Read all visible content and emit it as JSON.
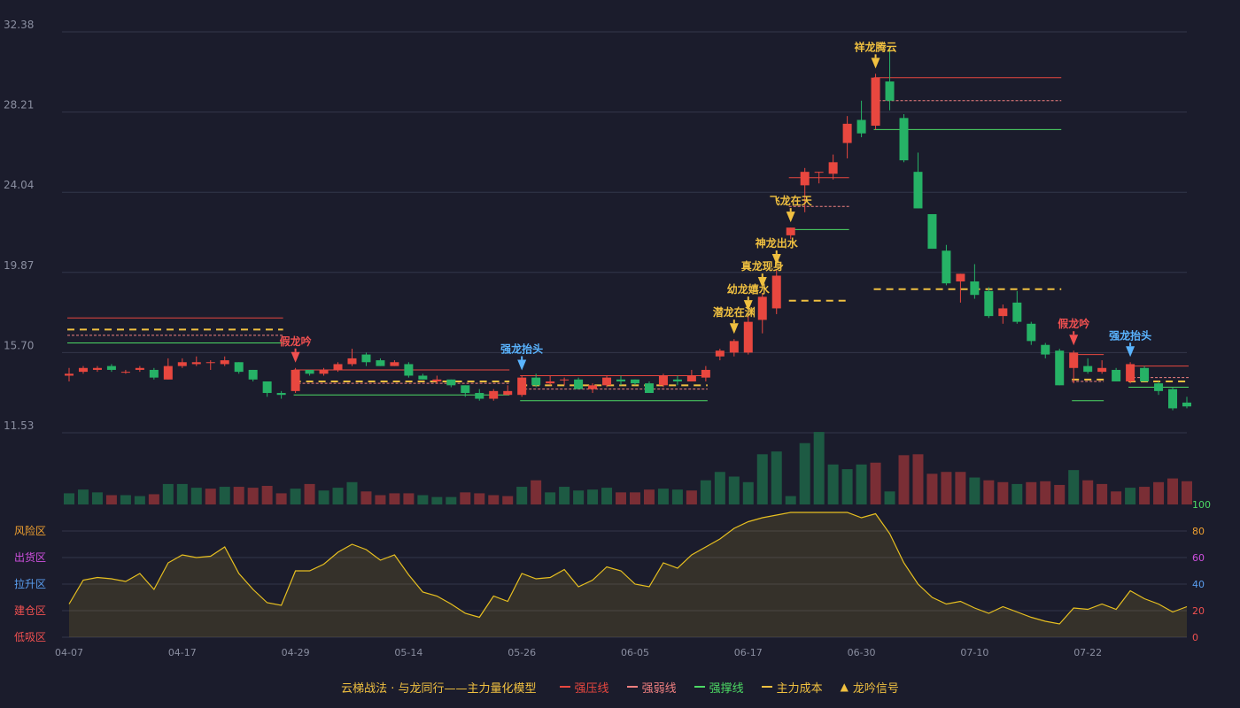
{
  "colors": {
    "background": "#1b1c2c",
    "up": "#e8473f",
    "down": "#26b266",
    "strong_pressure": "#e8473f",
    "strong_weak": "#f08080",
    "strong_support": "#4cd964",
    "main_cost": "#f0c040",
    "signal_gold": "#f0c040",
    "signal_red": "#f05050",
    "signal_blue": "#5ab4ff",
    "oscillator": "#e8c020",
    "grid": "#33364a",
    "axis_text": "#8a8ea0"
  },
  "legend": {
    "caption": "云梯战法 · 与龙同行——主力量化模型",
    "items": [
      {
        "label": "强压线",
        "color": "#e8473f",
        "style": "solid"
      },
      {
        "label": "强弱线",
        "color": "#f08080",
        "style": "dashed"
      },
      {
        "label": "强撑线",
        "color": "#4cd964",
        "style": "solid"
      },
      {
        "label": "主力成本",
        "color": "#f0c040",
        "style": "dashed"
      },
      {
        "label": "龙吟信号",
        "color": "#f0c040",
        "style": "triangle"
      }
    ]
  },
  "chart_data": {
    "type": "candlestick",
    "price_ticks": [
      "32.38",
      "28.21",
      "24.04",
      "19.87",
      "15.70",
      "11.53"
    ],
    "ylim": [
      11.53,
      32.38
    ],
    "x_ticks": [
      {
        "label": "04-07",
        "index": 0
      },
      {
        "label": "04-17",
        "index": 8
      },
      {
        "label": "04-29",
        "index": 16
      },
      {
        "label": "05-14",
        "index": 24
      },
      {
        "label": "05-26",
        "index": 32
      },
      {
        "label": "06-05",
        "index": 40
      },
      {
        "label": "06-17",
        "index": 48
      },
      {
        "label": "06-30",
        "index": 56
      },
      {
        "label": "07-10",
        "index": 64
      },
      {
        "label": "07-22",
        "index": 72
      }
    ],
    "candles": [
      [
        14.5,
        14.6,
        14.2,
        14.9
      ],
      [
        14.7,
        14.9,
        14.6,
        15.0
      ],
      [
        14.8,
        14.9,
        14.7,
        15.0
      ],
      [
        15.0,
        14.8,
        14.7,
        15.1
      ],
      [
        14.7,
        14.7,
        14.6,
        14.8
      ],
      [
        14.8,
        14.9,
        14.7,
        15.0
      ],
      [
        14.8,
        14.4,
        14.3,
        14.9
      ],
      [
        14.3,
        15.0,
        14.3,
        15.4
      ],
      [
        15.0,
        15.2,
        14.9,
        15.4
      ],
      [
        15.1,
        15.2,
        15.0,
        15.5
      ],
      [
        15.2,
        15.2,
        14.8,
        15.3
      ],
      [
        15.1,
        15.3,
        15.0,
        15.5
      ],
      [
        15.2,
        14.7,
        14.6,
        15.2
      ],
      [
        14.8,
        14.3,
        14.2,
        14.8
      ],
      [
        14.2,
        13.6,
        13.4,
        14.2
      ],
      [
        13.6,
        13.5,
        13.3,
        13.7
      ],
      [
        13.7,
        14.8,
        13.6,
        14.9
      ],
      [
        14.8,
        14.6,
        14.5,
        14.8
      ],
      [
        14.6,
        14.8,
        14.5,
        14.9
      ],
      [
        14.8,
        15.1,
        14.7,
        15.2
      ],
      [
        15.1,
        15.4,
        15.0,
        15.9
      ],
      [
        15.6,
        15.2,
        15.0,
        15.7
      ],
      [
        15.3,
        15.0,
        15.0,
        15.4
      ],
      [
        15.0,
        15.2,
        15.0,
        15.3
      ],
      [
        15.1,
        14.5,
        14.4,
        15.2
      ],
      [
        14.5,
        14.3,
        14.3,
        14.6
      ],
      [
        14.2,
        14.3,
        14.1,
        14.5
      ],
      [
        14.3,
        14.0,
        13.9,
        14.3
      ],
      [
        14.0,
        13.6,
        13.4,
        14.0
      ],
      [
        13.6,
        13.3,
        13.2,
        13.8
      ],
      [
        13.3,
        13.7,
        13.2,
        13.8
      ],
      [
        13.5,
        13.7,
        13.5,
        14.0
      ],
      [
        13.5,
        14.4,
        13.4,
        14.5
      ],
      [
        14.4,
        14.0,
        13.9,
        14.6
      ],
      [
        14.1,
        14.2,
        14.0,
        14.5
      ],
      [
        14.3,
        14.3,
        14.0,
        14.4
      ],
      [
        14.3,
        13.8,
        13.8,
        14.4
      ],
      [
        13.8,
        14.0,
        13.6,
        14.1
      ],
      [
        14.0,
        14.4,
        13.9,
        14.5
      ],
      [
        14.3,
        14.2,
        14.0,
        14.5
      ],
      [
        14.3,
        14.1,
        14.0,
        14.3
      ],
      [
        14.1,
        13.6,
        13.6,
        14.2
      ],
      [
        14.0,
        14.5,
        13.9,
        14.6
      ],
      [
        14.3,
        14.2,
        14.0,
        14.5
      ],
      [
        14.2,
        14.5,
        14.2,
        14.8
      ],
      [
        14.4,
        14.8,
        14.2,
        15.0
      ],
      [
        15.5,
        15.8,
        15.3,
        15.9
      ],
      [
        15.7,
        16.3,
        15.5,
        16.4
      ],
      [
        15.7,
        17.3,
        15.6,
        17.6
      ],
      [
        17.4,
        18.6,
        16.7,
        18.8
      ],
      [
        18.0,
        19.7,
        17.7,
        20.0
      ],
      [
        21.8,
        22.2,
        21.6,
        22.2
      ],
      [
        24.4,
        25.1,
        23.0,
        25.3
      ],
      [
        25.1,
        25.1,
        24.5,
        25.1
      ],
      [
        25.0,
        25.6,
        24.7,
        26.0
      ],
      [
        26.6,
        27.6,
        25.8,
        28.0
      ],
      [
        27.8,
        27.1,
        26.9,
        28.8
      ],
      [
        27.5,
        30.0,
        27.3,
        30.2
      ],
      [
        29.8,
        28.8,
        28.3,
        31.6
      ],
      [
        27.9,
        25.7,
        25.6,
        28.1
      ],
      [
        25.1,
        23.2,
        23.2,
        26.1
      ],
      [
        22.9,
        21.1,
        21.1,
        22.9
      ],
      [
        21.0,
        19.3,
        19.2,
        21.3
      ],
      [
        19.4,
        19.8,
        18.3,
        19.8
      ],
      [
        19.4,
        18.7,
        18.5,
        20.3
      ],
      [
        18.9,
        17.6,
        17.5,
        19.1
      ],
      [
        17.6,
        18.0,
        17.2,
        18.2
      ],
      [
        18.3,
        17.3,
        17.2,
        18.9
      ],
      [
        17.2,
        16.3,
        16.1,
        17.3
      ],
      [
        16.1,
        15.6,
        15.4,
        16.2
      ],
      [
        15.8,
        14.0,
        14.0,
        15.9
      ],
      [
        14.9,
        15.7,
        14.1,
        15.8
      ],
      [
        15.0,
        14.7,
        14.6,
        15.4
      ],
      [
        14.7,
        14.9,
        14.6,
        15.3
      ],
      [
        14.8,
        14.2,
        14.2,
        14.9
      ],
      [
        14.2,
        15.1,
        14.1,
        15.2
      ],
      [
        14.9,
        14.2,
        14.2,
        15.0
      ],
      [
        14.1,
        13.7,
        13.5,
        14.2
      ],
      [
        13.8,
        12.8,
        12.7,
        13.9
      ],
      [
        13.1,
        12.9,
        12.8,
        13.4
      ]
    ],
    "volumes": [
      [
        1.2,
        "d"
      ],
      [
        1.6,
        "d"
      ],
      [
        1.3,
        "d"
      ],
      [
        1.0,
        "u"
      ],
      [
        1.0,
        "d"
      ],
      [
        0.9,
        "d"
      ],
      [
        1.1,
        "u"
      ],
      [
        2.2,
        "d"
      ],
      [
        2.2,
        "d"
      ],
      [
        1.8,
        "d"
      ],
      [
        1.7,
        "u"
      ],
      [
        1.9,
        "d"
      ],
      [
        1.9,
        "u"
      ],
      [
        1.8,
        "u"
      ],
      [
        2.0,
        "u"
      ],
      [
        1.2,
        "u"
      ],
      [
        1.7,
        "d"
      ],
      [
        2.2,
        "u"
      ],
      [
        1.5,
        "d"
      ],
      [
        1.8,
        "d"
      ],
      [
        2.4,
        "d"
      ],
      [
        1.4,
        "u"
      ],
      [
        1.0,
        "u"
      ],
      [
        1.2,
        "u"
      ],
      [
        1.2,
        "u"
      ],
      [
        1.0,
        "d"
      ],
      [
        0.8,
        "d"
      ],
      [
        0.8,
        "d"
      ],
      [
        1.3,
        "u"
      ],
      [
        1.2,
        "u"
      ],
      [
        1.0,
        "u"
      ],
      [
        0.9,
        "u"
      ],
      [
        1.9,
        "d"
      ],
      [
        2.6,
        "u"
      ],
      [
        1.3,
        "d"
      ],
      [
        1.9,
        "d"
      ],
      [
        1.5,
        "d"
      ],
      [
        1.6,
        "d"
      ],
      [
        1.8,
        "d"
      ],
      [
        1.3,
        "u"
      ],
      [
        1.3,
        "u"
      ],
      [
        1.6,
        "u"
      ],
      [
        1.7,
        "d"
      ],
      [
        1.6,
        "d"
      ],
      [
        1.5,
        "u"
      ],
      [
        2.6,
        "d"
      ],
      [
        3.5,
        "d"
      ],
      [
        3.0,
        "d"
      ],
      [
        2.4,
        "d"
      ],
      [
        5.4,
        "d"
      ],
      [
        5.7,
        "d"
      ],
      [
        0.9,
        "d"
      ],
      [
        6.6,
        "d"
      ],
      [
        7.8,
        "d"
      ],
      [
        4.3,
        "d"
      ],
      [
        3.8,
        "d"
      ],
      [
        4.3,
        "d"
      ],
      [
        4.5,
        "u"
      ],
      [
        1.4,
        "d"
      ],
      [
        5.3,
        "u"
      ],
      [
        5.4,
        "u"
      ],
      [
        3.3,
        "u"
      ],
      [
        3.5,
        "u"
      ],
      [
        3.5,
        "u"
      ],
      [
        2.9,
        "d"
      ],
      [
        2.6,
        "u"
      ],
      [
        2.4,
        "u"
      ],
      [
        2.2,
        "d"
      ],
      [
        2.4,
        "u"
      ],
      [
        2.5,
        "u"
      ],
      [
        2.1,
        "u"
      ],
      [
        3.7,
        "d"
      ],
      [
        2.6,
        "u"
      ],
      [
        2.2,
        "u"
      ],
      [
        1.4,
        "u"
      ],
      [
        1.8,
        "d"
      ],
      [
        1.9,
        "u"
      ],
      [
        2.4,
        "u"
      ],
      [
        2.8,
        "u"
      ],
      [
        2.5,
        "u"
      ]
    ],
    "oscillator": {
      "zones": [
        {
          "label": "风险区",
          "color": "#f0a030"
        },
        {
          "label": "出货区",
          "color": "#d050e0"
        },
        {
          "label": "拉升区",
          "color": "#5a9ef0"
        },
        {
          "label": "建仓区",
          "color": "#f05050"
        },
        {
          "label": "低吸区",
          "color": "#f05050"
        }
      ],
      "right_ticks": [
        {
          "label": "100",
          "value": 100,
          "color": "#4cd964"
        },
        {
          "label": "80",
          "value": 80,
          "color": "#f0a030"
        },
        {
          "label": "60",
          "value": 60,
          "color": "#d050e0"
        },
        {
          "label": "40",
          "value": 40,
          "color": "#5a9ef0"
        },
        {
          "label": "20",
          "value": 20,
          "color": "#f05050"
        },
        {
          "label": "0",
          "value": 0,
          "color": "#f05050"
        }
      ],
      "values": [
        25,
        43,
        45,
        44,
        42,
        48,
        36,
        56,
        62,
        60,
        61,
        68,
        48,
        36,
        26,
        24,
        50,
        50,
        55,
        64,
        70,
        66,
        58,
        62,
        47,
        34,
        31,
        25,
        18,
        15,
        31,
        27,
        48,
        44,
        45,
        51,
        38,
        43,
        53,
        50,
        40,
        38,
        56,
        52,
        62,
        68,
        74,
        82,
        87,
        90,
        92,
        94,
        94,
        94,
        94,
        94,
        90,
        93,
        78,
        56,
        40,
        30,
        25,
        27,
        22,
        18,
        23,
        19,
        15,
        12,
        10,
        22,
        21,
        25,
        21,
        35,
        29,
        25,
        19,
        23
      ]
    },
    "levels": [
      {
        "x0": 0,
        "x1": 15,
        "press": 17.5,
        "weak": 16.6,
        "support": 16.2,
        "cost": 16.9
      },
      {
        "x0": 16,
        "x1": 31,
        "press": 14.8,
        "weak": 14.1,
        "support": 13.5,
        "cost": 14.2
      },
      {
        "x0": 32,
        "x1": 45,
        "press": 14.5,
        "weak": 13.8,
        "support": 13.2,
        "cost": 14.0
      },
      {
        "x0": 51,
        "x1": 55,
        "press": 24.8,
        "weak": 23.3,
        "support": 22.1,
        "cost": 18.4
      },
      {
        "x0": 57,
        "x1": 70,
        "press": 30.0,
        "weak": 28.8,
        "support": 27.3,
        "cost": 19.0
      },
      {
        "x0": 71,
        "x1": 73,
        "press": 15.6,
        "weak": 14.2,
        "support": 13.2,
        "cost": 14.3
      },
      {
        "x0": 75,
        "x1": 79,
        "press": 15.0,
        "weak": 14.4,
        "support": 13.9,
        "cost": 14.2
      }
    ],
    "signals": [
      {
        "index": 16,
        "label": "假龙吟",
        "color": "#f05050"
      },
      {
        "index": 32,
        "label": "强龙抬头",
        "color": "#5ab4ff"
      },
      {
        "index": 47,
        "label": "潜龙在渊",
        "color": "#f0c040"
      },
      {
        "index": 48,
        "label": "幼龙嬉水",
        "color": "#f0c040"
      },
      {
        "index": 49,
        "label": "真龙现身",
        "color": "#f0c040"
      },
      {
        "index": 50,
        "label": "神龙出水",
        "color": "#f0c040"
      },
      {
        "index": 51,
        "label": "飞龙在天",
        "color": "#f0c040"
      },
      {
        "index": 57,
        "label": "祥龙腾云",
        "color": "#f0c040"
      },
      {
        "index": 71,
        "label": "假龙吟",
        "color": "#f05050"
      },
      {
        "index": 75,
        "label": "强龙抬头",
        "color": "#5ab4ff"
      }
    ]
  }
}
